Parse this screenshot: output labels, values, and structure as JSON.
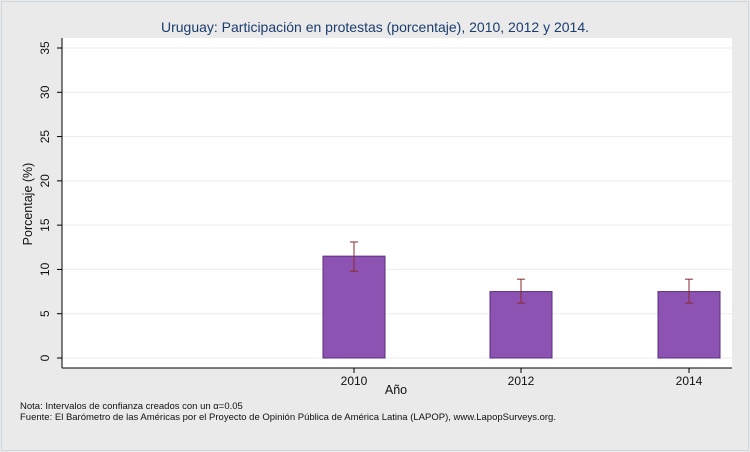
{
  "chart_data": {
    "type": "bar",
    "title": "Uruguay: Participación en protestas (porcentaje), 2010, 2012 y 2014.",
    "xlabel": "Año",
    "ylabel": "Porcentaje (%)",
    "categories": [
      "2010",
      "2012",
      "2014"
    ],
    "values": [
      11.5,
      7.5,
      7.5
    ],
    "ci_low": [
      9.8,
      6.2,
      6.2
    ],
    "ci_high": [
      13.1,
      8.9,
      8.9
    ],
    "ylim": [
      0,
      35
    ],
    "yticks": [
      0,
      5,
      10,
      15,
      20,
      25,
      30,
      35
    ],
    "grid": true,
    "legend": "none",
    "colors": {
      "bar": "#8c53b3",
      "bar_edge": "#5a2e7e",
      "error_bar": "#8b2a2a",
      "background": "#eaeaea",
      "plot_background": "#ffffff"
    }
  },
  "notes": {
    "nota": "Nota: Intervalos de confianza creados con un α=0.05",
    "fuente": "Fuente: El Barómetro de las Américas por el Proyecto de Opinión Pública de América Latina (LAPOP), www.LapopSurveys.org."
  }
}
